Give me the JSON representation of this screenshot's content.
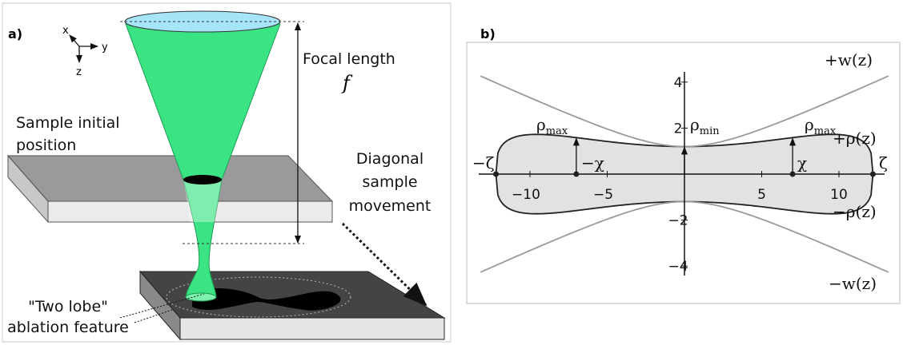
{
  "panel_a": {
    "label": "a)",
    "axes": {
      "x": "x",
      "y": "y",
      "z": "z"
    },
    "focal_length": "Focal length",
    "focal_symbol": "f",
    "sample_initial": [
      "Sample initial",
      "position"
    ],
    "diagonal": [
      "Diagonal",
      "sample",
      "movement"
    ],
    "feature": [
      "\"Two lobe\"",
      "ablation feature"
    ]
  },
  "panel_b": {
    "label": "b)",
    "x_ticks": [
      "−10",
      "−5",
      "5",
      "10"
    ],
    "y_ticks": [
      "4",
      "2",
      "−2",
      "−4"
    ],
    "plus_w": "+w(z)",
    "minus_w": "−w(z)",
    "plus_rho": "+ρ(z)",
    "minus_rho": "−ρ(z)",
    "rho_max": {
      "symbol": "ρ",
      "sub": "max"
    },
    "rho_min": {
      "symbol": "ρ",
      "sub": "min"
    },
    "minus_zeta": "−ζ",
    "zeta": "ζ",
    "minus_chi": "−χ",
    "chi": "χ"
  }
}
